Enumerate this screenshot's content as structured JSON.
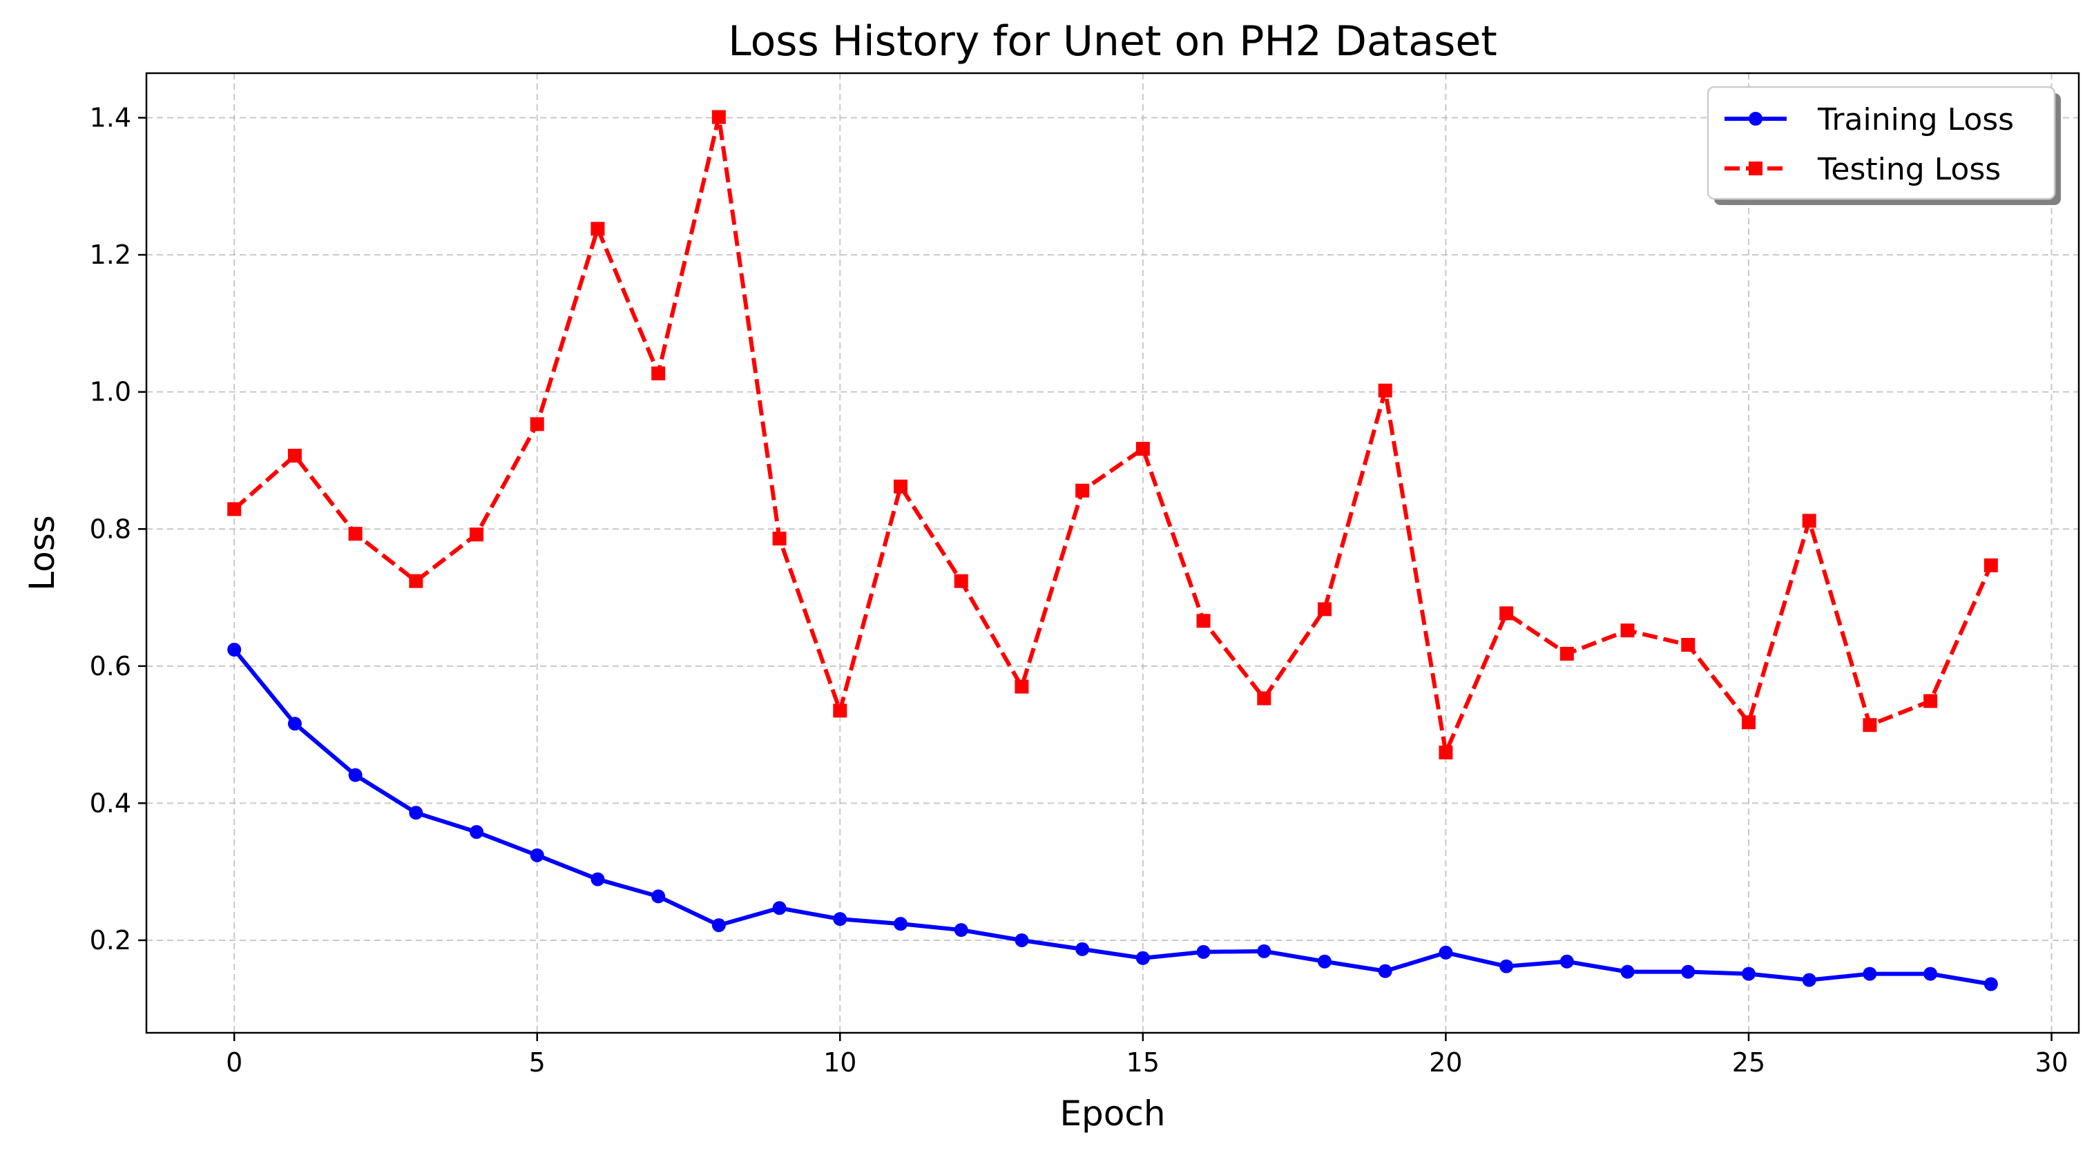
{
  "chart_data": {
    "type": "line",
    "title": "Loss History for Unet on PH2 Dataset",
    "xlabel": "Epoch",
    "ylabel": "Loss",
    "xlim": [
      -1.45,
      30.45
    ],
    "ylim": [
      0.065,
      1.465
    ],
    "xticks": [
      0,
      5,
      10,
      15,
      20,
      25,
      30
    ],
    "yticks": [
      0.2,
      0.4,
      0.6,
      0.8,
      1.0,
      1.2,
      1.4
    ],
    "xtick_labels": [
      "0",
      "5",
      "10",
      "15",
      "20",
      "25",
      "30"
    ],
    "ytick_labels": [
      "0.2",
      "0.4",
      "0.6",
      "0.8",
      "1.0",
      "1.2",
      "1.4"
    ],
    "grid": true,
    "legend_position": "top-right",
    "x": [
      0,
      1,
      2,
      3,
      4,
      5,
      6,
      7,
      8,
      9,
      10,
      11,
      12,
      13,
      14,
      15,
      16,
      17,
      18,
      19,
      20,
      21,
      22,
      23,
      24,
      25,
      26,
      27,
      28,
      29
    ],
    "series": [
      {
        "name": "Training Loss",
        "color": "#0000ff",
        "marker": "circle",
        "linestyle": "solid",
        "values": [
          0.624,
          0.516,
          0.441,
          0.386,
          0.358,
          0.324,
          0.289,
          0.264,
          0.222,
          0.247,
          0.231,
          0.224,
          0.215,
          0.2,
          0.187,
          0.174,
          0.183,
          0.184,
          0.169,
          0.155,
          0.182,
          0.162,
          0.169,
          0.154,
          0.154,
          0.151,
          0.142,
          0.151,
          0.151,
          0.136
        ]
      },
      {
        "name": "Testing Loss",
        "color": "#ff0000",
        "marker": "square",
        "linestyle": "dashed",
        "values": [
          0.829,
          0.907,
          0.793,
          0.724,
          0.792,
          0.953,
          1.238,
          1.027,
          1.401,
          0.786,
          0.535,
          0.862,
          0.724,
          0.57,
          0.856,
          0.917,
          0.666,
          0.553,
          0.683,
          1.002,
          0.474,
          0.677,
          0.618,
          0.652,
          0.631,
          0.518,
          0.812,
          0.514,
          0.549,
          0.747
        ]
      }
    ]
  }
}
